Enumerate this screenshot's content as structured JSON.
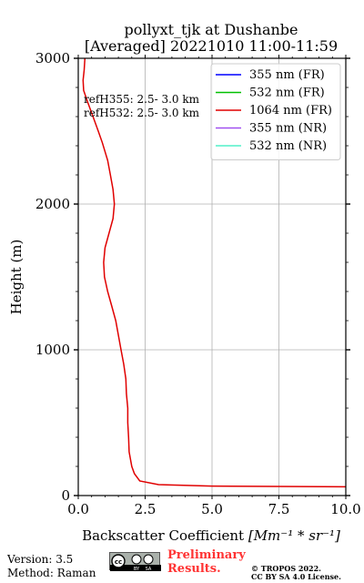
{
  "title_line1": "pollyxt_tjk at Dushanbe",
  "title_line2": "[Averaged] 20221010 11:00-11:59",
  "ref_line1": "refH355:  2.5- 3.0 km",
  "ref_line2": "refH532:  2.5- 3.0 km",
  "footer": {
    "version": "Version: 3.5",
    "method": "Method: Raman",
    "prelim_line1": "Preliminary",
    "prelim_line2": "Results.",
    "copyright_line1": "© TROPOS 2022.",
    "copyright_line2": "CC BY SA 4.0 License.",
    "cc_text": "cc",
    "by_text": "BY",
    "sa_text": "SA"
  },
  "chart_data": {
    "type": "line",
    "title": "pollyxt_tjk at Dushanbe [Averaged] 20221010 11:00-11:59",
    "xlabel_prefix": "Backscatter Coefficient ",
    "xlabel_units": "[Mm⁻¹ * sr⁻¹]",
    "ylabel": "Height (m)",
    "xlim": [
      0,
      10
    ],
    "ylim": [
      0,
      3000
    ],
    "xticks": [
      "0.0",
      "2.5",
      "5.0",
      "7.5",
      "10.0"
    ],
    "xtick_values": [
      0,
      2.5,
      5,
      7.5,
      10
    ],
    "yticks": [
      "0",
      "1000",
      "2000",
      "3000"
    ],
    "ytick_values": [
      0,
      1000,
      2000,
      3000
    ],
    "grid": true,
    "legend_position": "top-right",
    "series": [
      {
        "name": "355 nm (FR)",
        "color": "#0000ff",
        "x": [],
        "y": []
      },
      {
        "name": "532 nm (FR)",
        "color": "#00c000",
        "x": [],
        "y": []
      },
      {
        "name": "1064 nm (FR)",
        "color": "#e00000",
        "x": [
          0.25,
          0.22,
          0.18,
          0.2,
          0.35,
          0.55,
          0.75,
          0.9,
          1.1,
          1.2,
          1.3,
          1.35,
          1.3,
          1.15,
          1.0,
          0.95,
          0.98,
          1.1,
          1.25,
          1.4,
          1.5,
          1.6,
          1.7,
          1.78,
          1.8,
          1.85,
          1.85,
          1.88,
          1.9,
          2.0,
          2.1,
          2.3,
          3.0,
          5.0,
          10.0
        ],
        "y": [
          3000,
          2920,
          2850,
          2780,
          2700,
          2600,
          2500,
          2420,
          2300,
          2200,
          2100,
          2000,
          1900,
          1800,
          1700,
          1600,
          1500,
          1400,
          1300,
          1200,
          1100,
          1000,
          900,
          800,
          700,
          600,
          500,
          400,
          300,
          200,
          150,
          100,
          75,
          65,
          60
        ]
      },
      {
        "name": "355 nm (NR)",
        "color": "#a050f0",
        "x": [],
        "y": []
      },
      {
        "name": "532 nm (NR)",
        "color": "#50f0c8",
        "x": [],
        "y": []
      }
    ]
  }
}
